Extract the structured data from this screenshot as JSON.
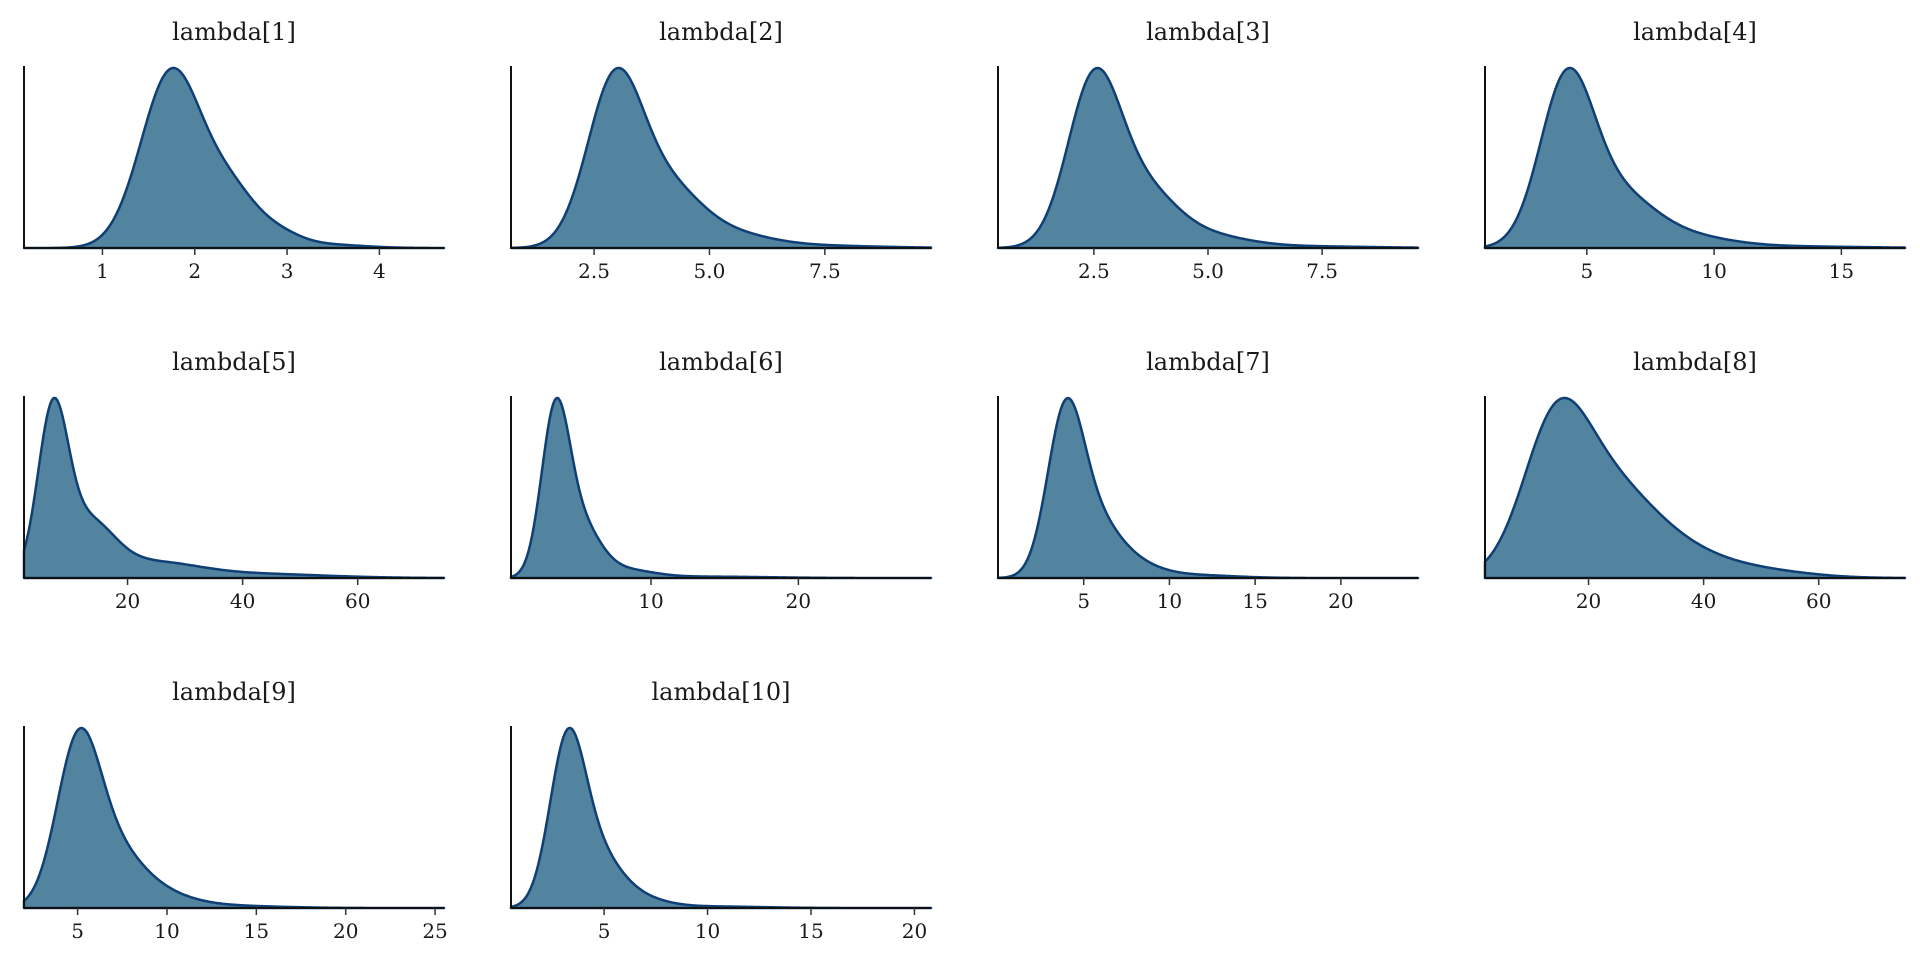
{
  "chart_data": {
    "type": "area",
    "fill_color": "#52839f",
    "line_color": "#0f3f75",
    "panels": [
      {
        "title": "lambda[1]",
        "xlim": [
          0.15,
          4.7
        ],
        "ticks": [
          1,
          2,
          3,
          4
        ],
        "tick_labels": [
          "1",
          "2",
          "3",
          "4"
        ],
        "comps": [
          [
            1.75,
            0.33,
            1.0
          ],
          [
            2.4,
            0.28,
            0.28
          ],
          [
            2.9,
            0.25,
            0.07
          ],
          [
            3.4,
            0.4,
            0.02
          ]
        ]
      },
      {
        "title": "lambda[2]",
        "xlim": [
          0.7,
          9.8
        ],
        "ticks": [
          2.5,
          5.0,
          7.5
        ],
        "tick_labels": [
          "2.5",
          "5.0",
          "7.5"
        ],
        "comps": [
          [
            2.95,
            0.6,
            0.95
          ],
          [
            4.1,
            0.7,
            0.3
          ],
          [
            5.3,
            0.9,
            0.08
          ],
          [
            7.0,
            1.5,
            0.015
          ]
        ]
      },
      {
        "title": "lambda[3]",
        "xlim": [
          0.4,
          9.6
        ],
        "ticks": [
          2.5,
          5.0,
          7.5
        ],
        "tick_labels": [
          "2.5",
          "5.0",
          "7.5"
        ],
        "comps": [
          [
            2.5,
            0.58,
            0.95
          ],
          [
            3.6,
            0.7,
            0.3
          ],
          [
            4.9,
            0.9,
            0.07
          ],
          [
            7.0,
            1.5,
            0.01
          ]
        ]
      },
      {
        "title": "lambda[4]",
        "xlim": [
          1.0,
          17.5
        ],
        "ticks": [
          5,
          10,
          15
        ],
        "tick_labels": [
          "5",
          "10",
          "15"
        ],
        "comps": [
          [
            4.2,
            1.05,
            0.95
          ],
          [
            6.2,
            1.4,
            0.28
          ],
          [
            8.6,
            1.8,
            0.07
          ],
          [
            12.5,
            3.0,
            0.01
          ]
        ]
      },
      {
        "title": "lambda[5]",
        "xlim": [
          2.0,
          75.0
        ],
        "ticks": [
          20,
          40,
          60
        ],
        "tick_labels": [
          "20",
          "40",
          "60"
        ],
        "comps": [
          [
            7.0,
            2.6,
            0.95
          ],
          [
            13.0,
            4.5,
            0.32
          ],
          [
            24.0,
            8.0,
            0.09
          ],
          [
            42.0,
            12.0,
            0.025
          ]
        ]
      },
      {
        "title": "lambda[6]",
        "xlim": [
          0.5,
          29.0
        ],
        "ticks": [
          10,
          20
        ],
        "tick_labels": [
          "10",
          "20"
        ],
        "comps": [
          [
            3.5,
            0.95,
            0.95
          ],
          [
            5.2,
            1.3,
            0.3
          ],
          [
            8.0,
            2.0,
            0.05
          ],
          [
            14.0,
            4.0,
            0.008
          ]
        ]
      },
      {
        "title": "lambda[7]",
        "xlim": [
          0.0,
          24.5
        ],
        "ticks": [
          5,
          10,
          15,
          20
        ],
        "tick_labels": [
          "5",
          "10",
          "15",
          "20"
        ],
        "comps": [
          [
            3.9,
            1.05,
            0.95
          ],
          [
            5.5,
            1.4,
            0.33
          ],
          [
            7.6,
            1.6,
            0.09
          ],
          [
            11.0,
            2.5,
            0.02
          ]
        ]
      },
      {
        "title": "lambda[8]",
        "xlim": [
          2.0,
          75.0
        ],
        "ticks": [
          20,
          40,
          60
        ],
        "tick_labels": [
          "20",
          "40",
          "60"
        ],
        "comps": [
          [
            14.0,
            5.5,
            0.68
          ],
          [
            22.0,
            8.5,
            0.55
          ],
          [
            36.0,
            9.0,
            0.13
          ],
          [
            52.0,
            8.0,
            0.03
          ]
        ]
      },
      {
        "title": "lambda[9]",
        "xlim": [
          2.0,
          25.5
        ],
        "ticks": [
          5,
          10,
          15,
          20,
          25
        ],
        "tick_labels": [
          "5",
          "10",
          "15",
          "20",
          "25"
        ],
        "comps": [
          [
            5.0,
            1.2,
            0.95
          ],
          [
            6.8,
            1.6,
            0.32
          ],
          [
            9.0,
            2.0,
            0.1
          ],
          [
            13.0,
            3.0,
            0.015
          ]
        ]
      },
      {
        "title": "lambda[10]",
        "xlim": [
          0.5,
          20.8
        ],
        "ticks": [
          5,
          10,
          15,
          20
        ],
        "tick_labels": [
          "5",
          "10",
          "15",
          "20"
        ],
        "comps": [
          [
            3.2,
            0.85,
            0.95
          ],
          [
            4.5,
            1.15,
            0.32
          ],
          [
            6.3,
            1.4,
            0.07
          ],
          [
            10.0,
            2.5,
            0.01
          ]
        ]
      }
    ]
  }
}
